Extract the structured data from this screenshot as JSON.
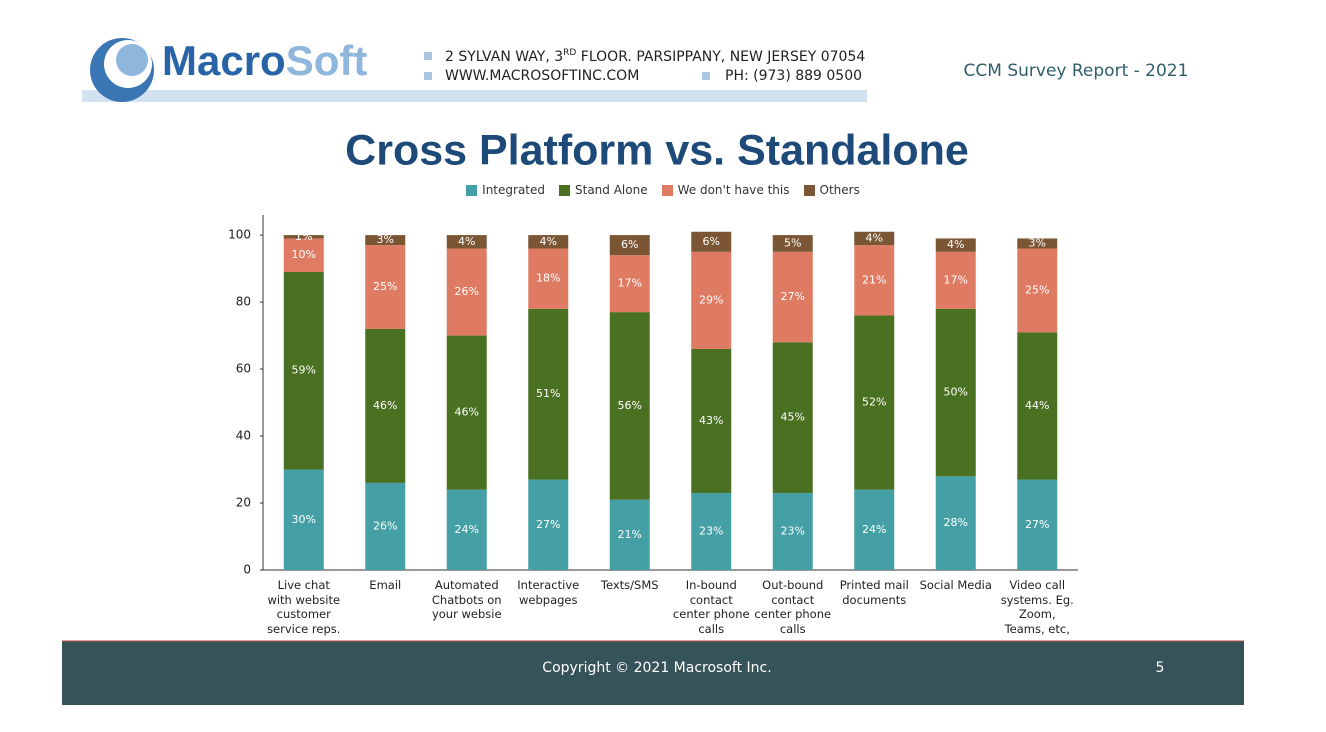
{
  "header": {
    "logo": [
      "Macro",
      "Soft"
    ],
    "address": [
      "2 SYLVAN WAY, 3",
      "RD",
      " FLOOR. PARSIPPANY, NEW JERSEY 07054"
    ],
    "website": "WWW.MACROSOFTINC.COM",
    "phone": "PH: (973) 889 0500",
    "report": "CCM Survey Report - 2021"
  },
  "chart_data": {
    "type": "stacked-bar",
    "title": "Cross Platform vs. Standalone",
    "categories": [
      "Live chat\nwith website\ncustomer\nservice reps.",
      "Email",
      "Automated\nChatbots on\nyour websie",
      "Interactive\nwebpages",
      "Texts/SMS",
      "In-bound\ncontact\ncenter phone\ncalls",
      "Out-bound\ncontact\ncenter phone\ncalls",
      "Printed mail\ndocuments",
      "Social Media",
      "Video call\nsystems. Eg.\nZoom,\nTeams, etc,"
    ],
    "series": [
      {
        "name": "Integrated",
        "color": "#45a0a6",
        "values": [
          30,
          26,
          24,
          27,
          21,
          23,
          23,
          24,
          28,
          27
        ],
        "value_labels": [
          "30%",
          "26%",
          "24%",
          "27%",
          "21%",
          "23%",
          "23%",
          "24%",
          "28%",
          "27%"
        ]
      },
      {
        "name": "Stand Alone",
        "color": "#4a7022",
        "values": [
          59,
          46,
          46,
          51,
          56,
          43,
          45,
          52,
          50,
          44
        ],
        "value_labels": [
          "59%",
          "46%",
          "46%",
          "51%",
          "56%",
          "43%",
          "45%",
          "52%",
          "50%",
          "44%"
        ]
      },
      {
        "name": "We don't have this",
        "color": "#e07b63",
        "values": [
          10,
          25,
          26,
          18,
          17,
          29,
          27,
          21,
          17,
          25
        ],
        "value_labels": [
          "10%",
          "25%",
          "26%",
          "18%",
          "17%",
          "29%",
          "27%",
          "21%",
          "17%",
          "25%"
        ]
      },
      {
        "name": "Others",
        "color": "#7b5634",
        "values": [
          1,
          3,
          4,
          4,
          6,
          6,
          5,
          4,
          4,
          3
        ],
        "value_labels": [
          "1%",
          "3%",
          "4%",
          "4%",
          "6%",
          "6%",
          "5%",
          "4%",
          "4%",
          "3%"
        ]
      }
    ],
    "ylim": [
      0,
      106
    ],
    "yticks": [
      0,
      20,
      40,
      60,
      80,
      100
    ],
    "grid": false
  },
  "footer": {
    "copyright": "Copyright © 2021 Macrosoft Inc.",
    "page": "5"
  }
}
